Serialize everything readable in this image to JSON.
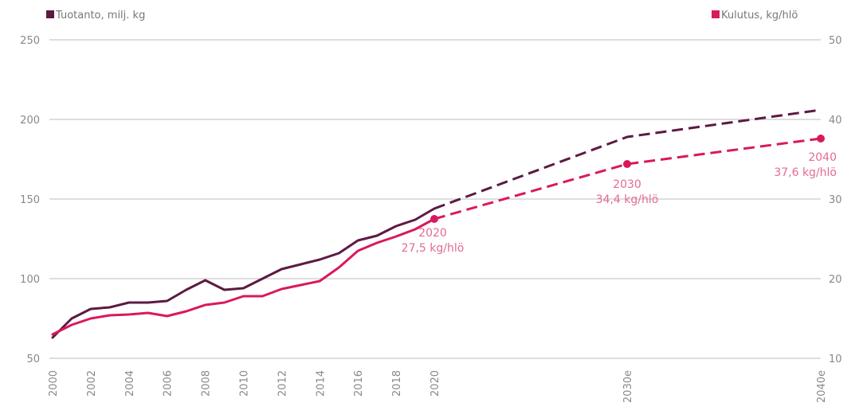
{
  "chart_data": {
    "type": "line",
    "legend": {
      "placement": "top"
    },
    "grid": true,
    "x_ticks": [
      {
        "label": "2000",
        "year": 2000
      },
      {
        "label": "2002",
        "year": 2002
      },
      {
        "label": "2004",
        "year": 2004
      },
      {
        "label": "2006",
        "year": 2006
      },
      {
        "label": "2008",
        "year": 2008
      },
      {
        "label": "2010",
        "year": 2010
      },
      {
        "label": "2012",
        "year": 2012
      },
      {
        "label": "2014",
        "year": 2014
      },
      {
        "label": "2016",
        "year": 2016
      },
      {
        "label": "2018",
        "year": 2018
      },
      {
        "label": "2020",
        "year": 2020
      },
      {
        "label": "2030e",
        "year": 2030
      },
      {
        "label": "2040e",
        "year": 2040
      }
    ],
    "y_left": {
      "ticks": [
        250,
        200,
        150,
        100,
        50
      ],
      "range": [
        50,
        250
      ]
    },
    "y_right": {
      "ticks": [
        50,
        40,
        30,
        20,
        10
      ],
      "range": [
        10,
        50
      ]
    },
    "series": [
      {
        "name": "Tuotanto, milj. kg",
        "axis": "left",
        "color": "#5c1a43",
        "actual": [
          [
            2000,
            63
          ],
          [
            2001,
            75
          ],
          [
            2002,
            81
          ],
          [
            2003,
            82
          ],
          [
            2004,
            85
          ],
          [
            2005,
            85
          ],
          [
            2006,
            86
          ],
          [
            2007,
            93
          ],
          [
            2008,
            99
          ],
          [
            2009,
            93
          ],
          [
            2010,
            94
          ],
          [
            2011,
            100
          ],
          [
            2012,
            106
          ],
          [
            2013,
            109
          ],
          [
            2014,
            112
          ],
          [
            2015,
            116
          ],
          [
            2016,
            124
          ],
          [
            2017,
            127
          ],
          [
            2018,
            133
          ],
          [
            2019,
            137
          ],
          [
            2020,
            144
          ]
        ],
        "forecast": [
          [
            2020,
            144
          ],
          [
            2030,
            189
          ],
          [
            2040,
            206
          ]
        ]
      },
      {
        "name": "Kulutus, kg/hlö",
        "axis": "right",
        "color": "#d9195d",
        "actual": [
          [
            2000,
            13.0
          ],
          [
            2001,
            14.2
          ],
          [
            2002,
            15.0
          ],
          [
            2003,
            15.4
          ],
          [
            2004,
            15.5
          ],
          [
            2005,
            15.7
          ],
          [
            2006,
            15.3
          ],
          [
            2007,
            15.9
          ],
          [
            2008,
            16.7
          ],
          [
            2009,
            17.0
          ],
          [
            2010,
            17.8
          ],
          [
            2011,
            17.8
          ],
          [
            2012,
            18.7
          ],
          [
            2013,
            19.2
          ],
          [
            2014,
            19.7
          ],
          [
            2015,
            21.4
          ],
          [
            2016,
            23.5
          ],
          [
            2017,
            24.5
          ],
          [
            2018,
            25.3
          ],
          [
            2019,
            26.2
          ],
          [
            2020,
            27.5
          ]
        ],
        "forecast": [
          [
            2020,
            27.5
          ],
          [
            2030,
            34.4
          ],
          [
            2040,
            37.6
          ]
        ]
      }
    ],
    "annotations": [
      {
        "year": 2020,
        "value": 27.5,
        "lines": [
          "2020",
          "27,5 kg/hlö"
        ]
      },
      {
        "year": 2030,
        "value": 34.4,
        "lines": [
          "2030",
          "34,4 kg/hlö"
        ]
      },
      {
        "year": 2040,
        "value": 37.6,
        "lines": [
          "2040",
          "37,6 kg/hlö"
        ]
      }
    ]
  }
}
